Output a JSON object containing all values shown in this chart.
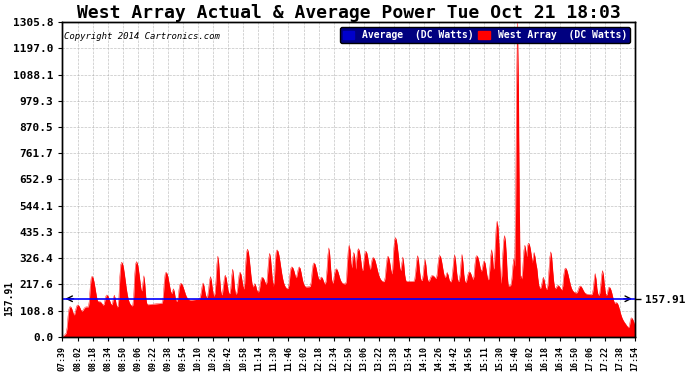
{
  "title": "West Array Actual & Average Power Tue Oct 21 18:03",
  "copyright": "Copyright 2014 Cartronics.com",
  "legend_labels": [
    "Average  (DC Watts)",
    "West Array  (DC Watts)"
  ],
  "legend_colors": [
    "#0000cc",
    "#ff0000"
  ],
  "legend_bg": "#000080",
  "yticks": [
    0.0,
    108.8,
    217.6,
    326.4,
    435.3,
    544.1,
    652.9,
    761.7,
    870.5,
    979.3,
    1088.1,
    1197.0,
    1305.8
  ],
  "ymin": 0.0,
  "ymax": 1305.8,
  "avg_line_value": 157.91,
  "avg_line_color": "#0000ff",
  "fill_color": "#ff0000",
  "background_color": "#ffffff",
  "plot_background": "#ffffff",
  "grid_color": "#aaaaaa",
  "title_fontsize": 13,
  "tick_fontsize": 8,
  "x_tick_labels": [
    "07:39",
    "08:02",
    "08:18",
    "08:34",
    "08:50",
    "09:06",
    "09:22",
    "09:38",
    "09:54",
    "10:10",
    "10:26",
    "10:42",
    "10:58",
    "11:14",
    "11:30",
    "11:46",
    "12:02",
    "12:18",
    "12:34",
    "12:50",
    "13:06",
    "13:22",
    "13:38",
    "13:54",
    "14:10",
    "14:26",
    "14:42",
    "14:56",
    "15:11",
    "15:30",
    "15:46",
    "16:02",
    "16:18",
    "16:34",
    "16:50",
    "17:06",
    "17:22",
    "17:38",
    "17:54"
  ]
}
